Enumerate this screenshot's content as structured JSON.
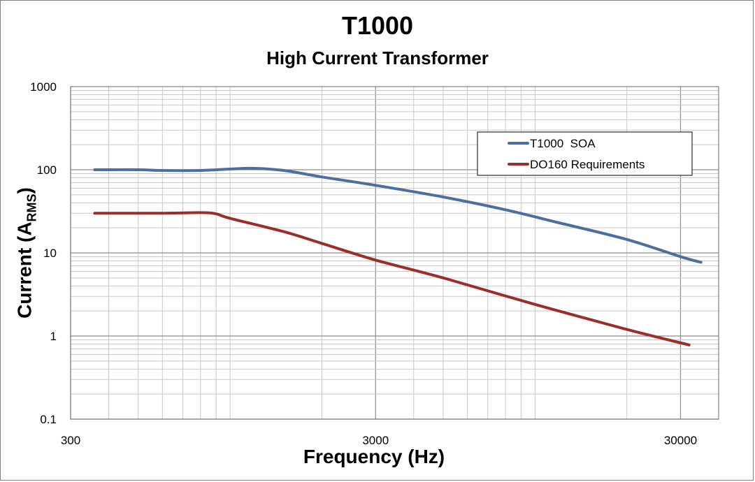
{
  "chart_data": {
    "type": "line",
    "title": "T1000",
    "subtitle": "High Current Transformer",
    "xlabel": "Frequency (Hz)",
    "ylabel_main": "Current (A",
    "ylabel_sub": "RMS",
    "ylabel_close": ")",
    "x_scale": "log",
    "y_scale": "log",
    "xlim": [
      300,
      40000
    ],
    "ylim": [
      0.1,
      1000
    ],
    "x_ticks": [
      300,
      3000,
      30000
    ],
    "x_tick_labels": [
      "300",
      "3000",
      "30000"
    ],
    "y_ticks": [
      0.1,
      1,
      10,
      100,
      1000
    ],
    "y_tick_labels": [
      "0.1",
      "1",
      "10",
      "100",
      "1000"
    ],
    "grid": true,
    "legend_position": "top-right",
    "series": [
      {
        "name": "T1000  SOA",
        "color": "#4a6fa0",
        "x": [
          360,
          500,
          600,
          800,
          1000,
          1200,
          1500,
          2000,
          3000,
          5000,
          8000,
          12000,
          20000,
          30000,
          35000
        ],
        "y": [
          100,
          100,
          98,
          98,
          102,
          104,
          98,
          82,
          65,
          47,
          33,
          23,
          14.5,
          9,
          7.7
        ]
      },
      {
        "name": "DO160 Requirements",
        "color": "#9b2d2a",
        "x": [
          360,
          600,
          800,
          900,
          1000,
          1500,
          2000,
          3000,
          5000,
          10000,
          20000,
          32000
        ],
        "y": [
          30,
          30,
          30.5,
          29.5,
          26,
          18,
          13,
          8.2,
          5,
          2.4,
          1.2,
          0.78
        ]
      }
    ]
  }
}
